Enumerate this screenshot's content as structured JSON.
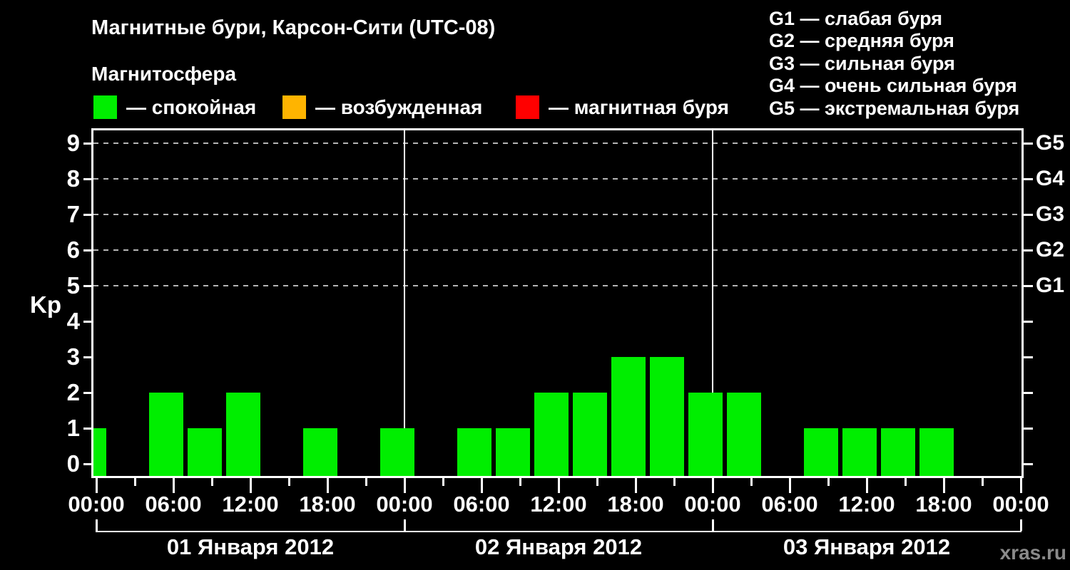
{
  "title": "Магнитные бури, Карсон-Сити (UTC-08)",
  "magnetosphere_legend": {
    "heading": "Магнитосфера",
    "items": [
      {
        "name": "quiet",
        "label": "— спокойная",
        "color": "#00ee00"
      },
      {
        "name": "unsettled",
        "label": "— возбужденная",
        "color": "#ffb400"
      },
      {
        "name": "storm",
        "label": "— магнитная буря",
        "color": "#ff0000"
      }
    ]
  },
  "storm_scale_legend": [
    "G1 — слабая буря",
    "G2 — средняя буря",
    "G3 — сильная буря",
    "G4 — очень сильная буря",
    "G5 — экстремальная буря"
  ],
  "watermark": "xras.ru",
  "chart_data": {
    "type": "bar",
    "title": "Магнитные бури, Карсон-Сити (UTC-08)",
    "ylabel": "Kp",
    "interval_hours": 3,
    "bar_color": "#00ee00",
    "y_ticks": [
      0,
      1,
      2,
      3,
      4,
      5,
      6,
      7,
      8,
      9
    ],
    "ylim": [
      -0.35,
      9.4
    ],
    "gridline_levels": [
      5,
      6,
      7,
      8,
      9
    ],
    "grid": "dashed horizontal at G-storm levels only",
    "legend_position": "top",
    "right_axis": [
      {
        "level": 9,
        "label": "G5"
      },
      {
        "level": 8,
        "label": "G4"
      },
      {
        "level": 7,
        "label": "G3"
      },
      {
        "level": 6,
        "label": "G2"
      },
      {
        "level": 5,
        "label": "G1"
      }
    ],
    "x_tick_labels_6h": [
      "00:00",
      "06:00",
      "12:00",
      "18:00",
      "00:00",
      "06:00",
      "12:00",
      "18:00",
      "00:00",
      "06:00",
      "12:00",
      "18:00",
      "00:00"
    ],
    "days": [
      {
        "date": "01 Января 2012",
        "kp_values": [
          1,
          0,
          2,
          1,
          2,
          0,
          1,
          0
        ]
      },
      {
        "date": "02 Января 2012",
        "kp_values": [
          1,
          0,
          1,
          1,
          2,
          2,
          3,
          3
        ]
      },
      {
        "date": "03 Января 2012",
        "kp_values": [
          2,
          2,
          0,
          1,
          1,
          1,
          1,
          0
        ]
      }
    ]
  }
}
